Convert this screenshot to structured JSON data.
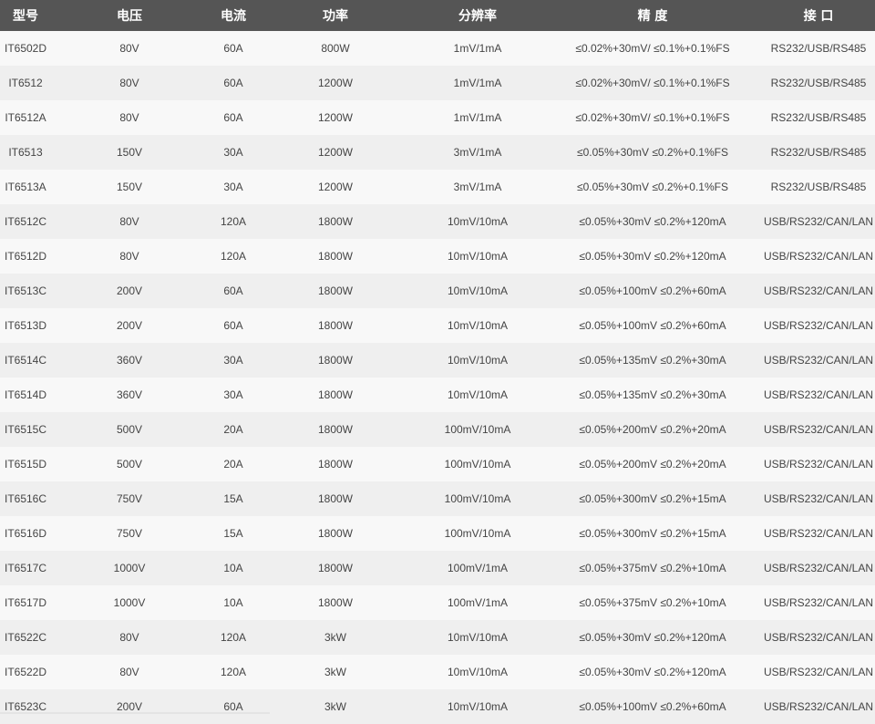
{
  "header_color": "#555555",
  "columns": [
    "型号",
    "电压",
    "电流",
    "功率",
    "分辨率",
    "精 度",
    "接 口"
  ],
  "rows": [
    [
      "IT6502D",
      "80V",
      "60A",
      "800W",
      "1mV/1mA",
      "≤0.02%+30mV/ ≤0.1%+0.1%FS",
      "RS232/USB/RS485"
    ],
    [
      "IT6512",
      "80V",
      "60A",
      "1200W",
      "1mV/1mA",
      "≤0.02%+30mV/ ≤0.1%+0.1%FS",
      "RS232/USB/RS485"
    ],
    [
      "IT6512A",
      "80V",
      "60A",
      "1200W",
      "1mV/1mA",
      "≤0.02%+30mV/ ≤0.1%+0.1%FS",
      "RS232/USB/RS485"
    ],
    [
      "IT6513",
      "150V",
      "30A",
      "1200W",
      "3mV/1mA",
      "≤0.05%+30mV ≤0.2%+0.1%FS",
      "RS232/USB/RS485"
    ],
    [
      "IT6513A",
      "150V",
      "30A",
      "1200W",
      "3mV/1mA",
      "≤0.05%+30mV ≤0.2%+0.1%FS",
      "RS232/USB/RS485"
    ],
    [
      "IT6512C",
      "80V",
      "120A",
      "1800W",
      "10mV/10mA",
      "≤0.05%+30mV ≤0.2%+120mA",
      "USB/RS232/CAN/LAN"
    ],
    [
      "IT6512D",
      "80V",
      "120A",
      "1800W",
      "10mV/10mA",
      "≤0.05%+30mV ≤0.2%+120mA",
      "USB/RS232/CAN/LAN"
    ],
    [
      "IT6513C",
      "200V",
      "60A",
      "1800W",
      "10mV/10mA",
      "≤0.05%+100mV ≤0.2%+60mA",
      "USB/RS232/CAN/LAN"
    ],
    [
      "IT6513D",
      "200V",
      "60A",
      "1800W",
      "10mV/10mA",
      "≤0.05%+100mV ≤0.2%+60mA",
      "USB/RS232/CAN/LAN"
    ],
    [
      "IT6514C",
      "360V",
      "30A",
      "1800W",
      "10mV/10mA",
      "≤0.05%+135mV ≤0.2%+30mA",
      "USB/RS232/CAN/LAN"
    ],
    [
      "IT6514D",
      "360V",
      "30A",
      "1800W",
      "10mV/10mA",
      "≤0.05%+135mV ≤0.2%+30mA",
      "USB/RS232/CAN/LAN"
    ],
    [
      "IT6515C",
      "500V",
      "20A",
      "1800W",
      "100mV/10mA",
      "≤0.05%+200mV ≤0.2%+20mA",
      "USB/RS232/CAN/LAN"
    ],
    [
      "IT6515D",
      "500V",
      "20A",
      "1800W",
      "100mV/10mA",
      "≤0.05%+200mV ≤0.2%+20mA",
      "USB/RS232/CAN/LAN"
    ],
    [
      "IT6516C",
      "750V",
      "15A",
      "1800W",
      "100mV/10mA",
      "≤0.05%+300mV ≤0.2%+15mA",
      "USB/RS232/CAN/LAN"
    ],
    [
      "IT6516D",
      "750V",
      "15A",
      "1800W",
      "100mV/10mA",
      "≤0.05%+300mV ≤0.2%+15mA",
      "USB/RS232/CAN/LAN"
    ],
    [
      "IT6517C",
      "1000V",
      "10A",
      "1800W",
      "100mV/1mA",
      "≤0.05%+375mV ≤0.2%+10mA",
      "USB/RS232/CAN/LAN"
    ],
    [
      "IT6517D",
      "1000V",
      "10A",
      "1800W",
      "100mV/1mA",
      "≤0.05%+375mV ≤0.2%+10mA",
      "USB/RS232/CAN/LAN"
    ],
    [
      "IT6522C",
      "80V",
      "120A",
      "3kW",
      "10mV/10mA",
      "≤0.05%+30mV ≤0.2%+120mA",
      "USB/RS232/CAN/LAN"
    ],
    [
      "IT6522D",
      "80V",
      "120A",
      "3kW",
      "10mV/10mA",
      "≤0.05%+30mV ≤0.2%+120mA",
      "USB/RS232/CAN/LAN"
    ],
    [
      "IT6523C",
      "200V",
      "60A",
      "3kW",
      "10mV/10mA",
      "≤0.05%+100mV ≤0.2%+60mA",
      "USB/RS232/CAN/LAN"
    ]
  ]
}
